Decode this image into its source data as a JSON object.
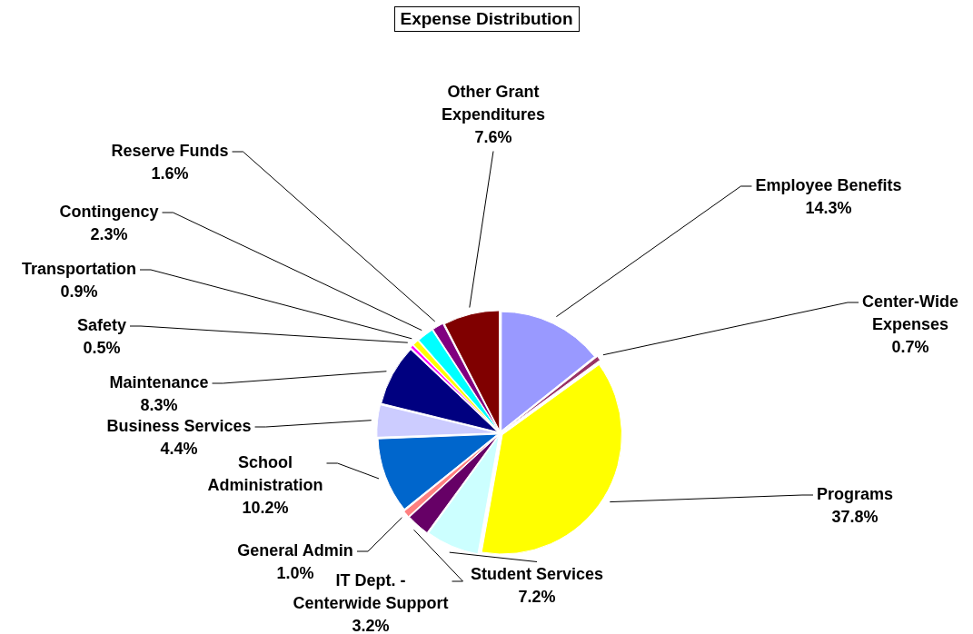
{
  "chart_data": {
    "type": "pie",
    "title": "Expense Distribution",
    "categories": [
      "Employee Benefits",
      "Center-Wide Expenses",
      "Programs",
      "Student Services",
      "IT Dept. - Centerwide Support",
      "General Admin",
      "School Administration",
      "Business Services",
      "Maintenance",
      "Safety",
      "Transportation",
      "Contingency",
      "Reserve Funds",
      "Other Grant Expenditures"
    ],
    "values": [
      14.3,
      0.7,
      37.8,
      7.2,
      3.2,
      1.0,
      10.2,
      4.4,
      8.3,
      0.5,
      0.9,
      2.3,
      1.6,
      7.6
    ],
    "colors": [
      "#9999ff",
      "#993366",
      "#ffff00",
      "#ccffff",
      "#660066",
      "#ff8080",
      "#0066cc",
      "#ccccff",
      "#000080",
      "#ff00ff",
      "#ffff00",
      "#00ffff",
      "#800080",
      "#800000"
    ],
    "value_labels": [
      "14.3%",
      "0.7%",
      "37.8%",
      "7.2%",
      "3.2%",
      "1.0%",
      "10.2%",
      "4.4%",
      "8.3%",
      "0.5%",
      "0.9%",
      "2.3%",
      "1.6%",
      "7.6%"
    ],
    "legend": false
  }
}
